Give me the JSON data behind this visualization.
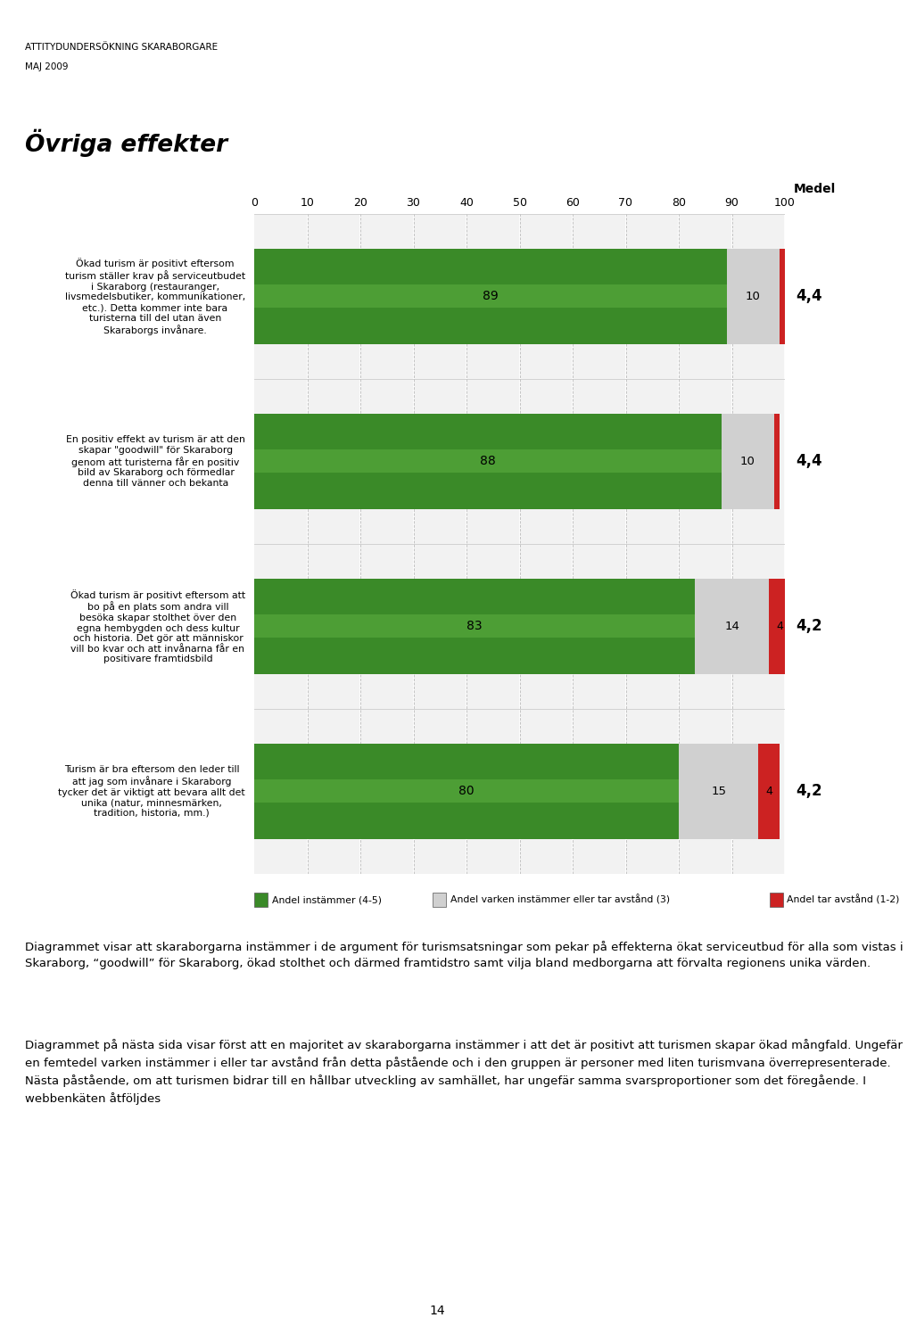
{
  "title": "Övriga effekter",
  "header_line1": "ATTITYDUNDERSÖKNING SKARABORGARE",
  "header_line2": "MAJ 2009",
  "medel_label": "Medel",
  "bars": [
    {
      "label": "Ökad turism är positivt eftersom\nturism ställer krav på serviceutbudet\ni Skaraborg (restauranger,\nlivsmedelsbutiker, kommunikationer,\netc.). Detta kommer inte bara\nturisterna till del utan även\nSkaraborgs invånare.",
      "green": 89,
      "gray": 10,
      "red": 1,
      "medel": "4,4"
    },
    {
      "label": "En positiv effekt av turism är att den\nskapar \"goodwill\" för Skaraborg\ngenom att turisterna får en positiv\nbild av Skaraborg och förmedlar\ndenna till vänner och bekanta",
      "green": 88,
      "gray": 10,
      "red": 1,
      "medel": "4,4"
    },
    {
      "label": "Ökad turism är positivt eftersom att\nbo på en plats som andra vill\nbesöka skapar stolthet över den\negna hembygden och dess kultur\noch historia. Det gör att människor\nvill bo kvar och att invånarna får en\npositivare framtidsbild",
      "green": 83,
      "gray": 14,
      "red": 4,
      "medel": "4,2"
    },
    {
      "label": "Turism är bra eftersom den leder till\natt jag som invånare i Skaraborg\ntycker det är viktigt att bevara allt det\nunika (natur, minnesmärken,\ntradition, historia, mm.)",
      "green": 80,
      "gray": 15,
      "red": 4,
      "medel": "4,2"
    }
  ],
  "legend": [
    {
      "label": "Andel instämmer (4-5)",
      "color": "#3a8a28"
    },
    {
      "label": "Andel varken instämmer eller tar avstånd (3)",
      "color": "#d0d0d0"
    },
    {
      "label": "Andel tar avstånd (1-2)",
      "color": "#cc2222"
    }
  ],
  "footer_para1": "Diagrammet visar att skaraborgarna instämmer i de argument för turismsatsningar som pekar på effekterna ökat serviceutbud för alla som vistas i Skaraborg, “goodwill” för Skaraborg, ökad stolthet och därmed framtidstro samt vilja bland medborgarna att förvalta regionens unika värden.",
  "footer_para2": "Diagrammet på nästa sida visar först att en majoritet av skaraborgarna instämmer i att det är positivt att turismen skapar ökad mångfald. Ungefär en femtedel varken instämmer i eller tar avstånd från detta påstående och i den gruppen är personer med liten turismvana överrepresenterade. Nästa påstående, om att turismen bidrar till en hållbar utveckling av samhället, har ungefär samma svarsproportioner som det föregående. I webbenkäten åtföljdes",
  "page_number": "14",
  "green_color": "#3a8a28",
  "green_light": "#5db040",
  "gray_color": "#d0d0d0",
  "red_color": "#cc2222",
  "axis_xlim": [
    0,
    100
  ],
  "xticks": [
    0,
    10,
    20,
    30,
    40,
    50,
    60,
    70,
    80,
    90,
    100
  ],
  "header_bar_color": "#8dc63f"
}
